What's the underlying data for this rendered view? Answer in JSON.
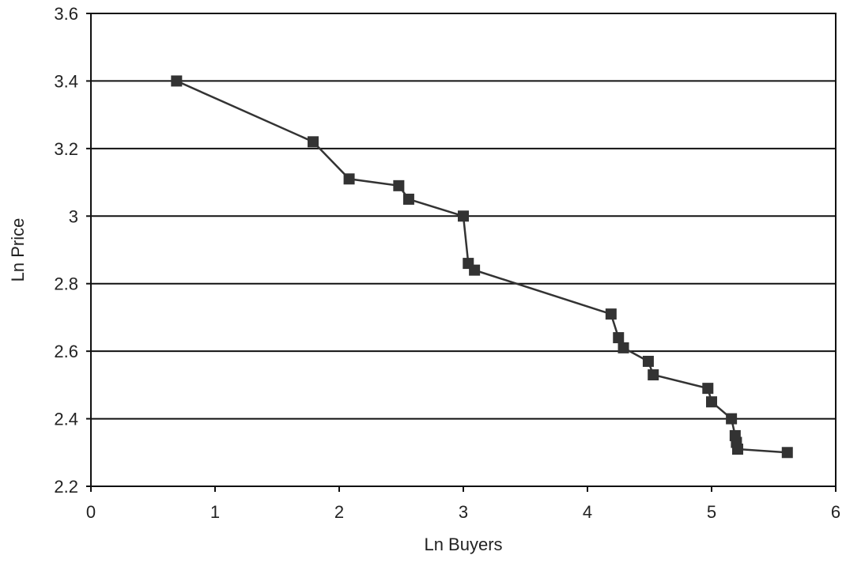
{
  "chart_data": {
    "type": "line",
    "title": "",
    "xlabel": "Ln Buyers",
    "ylabel": "Ln Price",
    "xlim": [
      0,
      6
    ],
    "ylim": [
      2.2,
      3.6
    ],
    "x_ticks": [
      "0",
      "1",
      "2",
      "3",
      "4",
      "5",
      "6"
    ],
    "y_ticks": [
      "2.2",
      "2.4",
      "2.6",
      "2.8",
      "3",
      "3.2",
      "3.4",
      "3.6"
    ],
    "grid": "horizontal",
    "legend": "none",
    "marker": "square",
    "line_color": "#333333",
    "series": [
      {
        "x": [
          0.69,
          1.79,
          2.08,
          2.48,
          2.56,
          3.0,
          3.04,
          3.09,
          4.19,
          4.25,
          4.29,
          4.49,
          4.53,
          4.97,
          5.0,
          5.16,
          5.19,
          5.2,
          5.21,
          5.61
        ],
        "y": [
          3.4,
          3.22,
          3.11,
          3.09,
          3.05,
          3.0,
          2.86,
          2.84,
          2.71,
          2.64,
          2.61,
          2.57,
          2.53,
          2.49,
          2.45,
          2.4,
          2.35,
          2.33,
          2.31,
          2.3
        ]
      }
    ]
  }
}
